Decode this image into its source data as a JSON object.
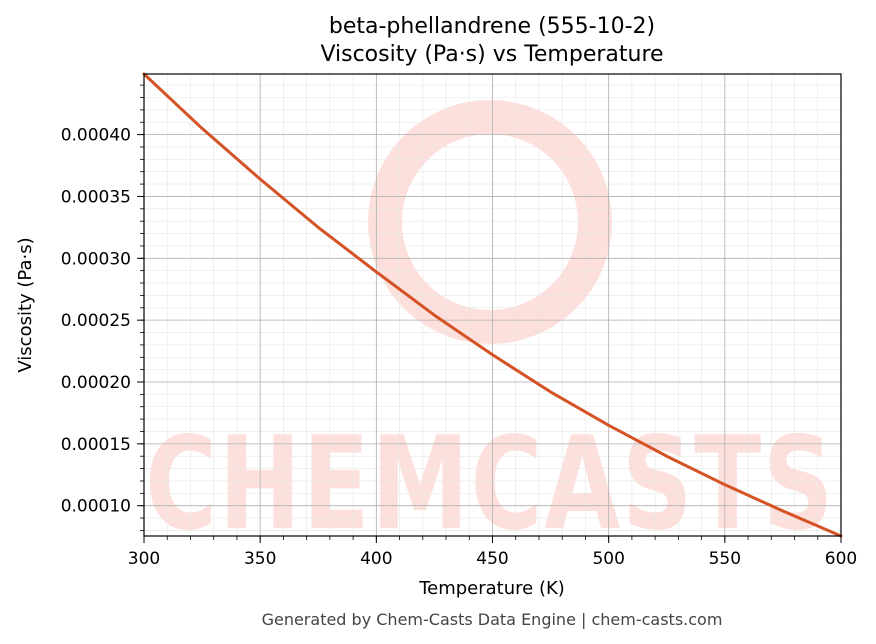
{
  "chart_data": {
    "type": "line",
    "title": "beta-phellandrene (555-10-2)",
    "subtitle": "Viscosity (Pa·s) vs Temperature",
    "xlabel": "Temperature (K)",
    "ylabel": "Viscosity (Pa·s)",
    "xlim": [
      300,
      600
    ],
    "ylim": [
      7.55e-05,
      0.000449
    ],
    "x_ticks": [
      300,
      350,
      400,
      450,
      500,
      550,
      600
    ],
    "x_tick_labels": [
      "300",
      "350",
      "400",
      "450",
      "500",
      "550",
      "600"
    ],
    "y_ticks": [
      0.0001,
      0.00015,
      0.0002,
      0.00025,
      0.0003,
      0.00035,
      0.0004
    ],
    "y_tick_labels": [
      "0.00010",
      "0.00015",
      "0.00020",
      "0.00025",
      "0.00030",
      "0.00035",
      "0.00040"
    ],
    "grid": true,
    "minor_grid": true,
    "series": [
      {
        "color": "#d45224",
        "x": [
          300,
          325,
          350,
          375,
          400,
          425,
          450,
          475,
          500,
          525,
          550,
          575,
          600
        ],
        "values": [
          0.000449,
          0.000405,
          0.000364,
          0.000325,
          0.000289,
          0.000254,
          0.000222,
          0.000192,
          0.000165,
          0.00014,
          0.000117,
          9.57e-05,
          7.55e-05
        ]
      }
    ]
  },
  "watermark": {
    "text": "CHEMCASTS",
    "color": "#fde0dc"
  },
  "footer": "Generated by Chem-Casts Data Engine | chem-casts.com"
}
